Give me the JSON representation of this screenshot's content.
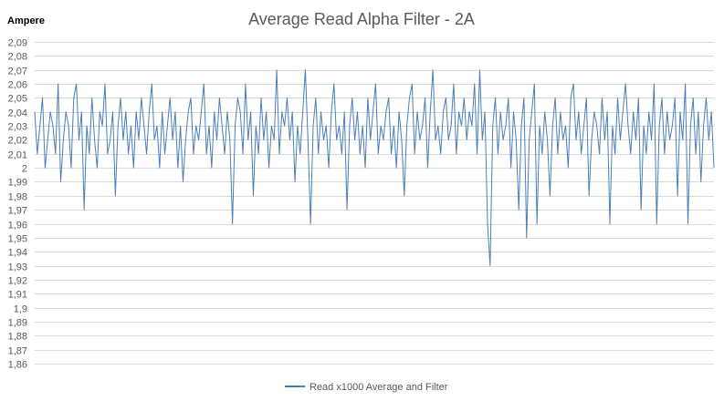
{
  "chart_data": {
    "type": "line",
    "title": "Average Read Alpha Filter - 2A",
    "ylabel": "Ampere",
    "xlabel": "",
    "ylim": [
      1.86,
      2.09
    ],
    "ytick_step": 0.01,
    "yticks": [
      "1,86",
      "1,87",
      "1,88",
      "1,89",
      "1,9",
      "1,91",
      "1,92",
      "1,93",
      "1,94",
      "1,95",
      "1,96",
      "1,97",
      "1,98",
      "1,99",
      "2",
      "2,01",
      "2,02",
      "2,03",
      "2,04",
      "2,05",
      "2,06",
      "2,07",
      "2,08",
      "2,09"
    ],
    "grid": true,
    "legend_position": "bottom",
    "series": [
      {
        "name": "Read x1000 Average and Filter",
        "color": "#4a7ebb",
        "values": [
          2.04,
          2.01,
          2.03,
          2.05,
          2.0,
          2.02,
          2.04,
          2.03,
          2.01,
          2.06,
          1.99,
          2.02,
          2.04,
          2.03,
          2.0,
          2.05,
          2.06,
          2.02,
          2.04,
          1.97,
          2.03,
          2.01,
          2.05,
          2.02,
          2.0,
          2.04,
          2.03,
          2.06,
          2.01,
          2.02,
          2.04,
          1.98,
          2.03,
          2.05,
          2.02,
          2.04,
          2.01,
          2.03,
          2.0,
          2.04,
          2.02,
          2.05,
          2.03,
          2.01,
          2.04,
          2.06,
          2.02,
          2.03,
          2.0,
          2.04,
          2.01,
          2.03,
          2.05,
          2.02,
          2.04,
          2.0,
          2.03,
          1.99,
          2.02,
          2.04,
          2.05,
          2.01,
          2.03,
          2.02,
          2.04,
          2.06,
          2.01,
          2.03,
          2.0,
          2.04,
          2.02,
          2.05,
          2.03,
          2.01,
          2.04,
          2.02,
          1.96,
          2.03,
          2.05,
          2.04,
          2.01,
          2.06,
          2.02,
          2.04,
          1.98,
          2.03,
          2.01,
          2.05,
          2.02,
          2.04,
          2.0,
          2.03,
          2.02,
          2.07,
          2.01,
          2.04,
          2.03,
          2.05,
          2.02,
          2.04,
          1.99,
          2.03,
          2.01,
          2.04,
          2.07,
          2.02,
          1.96,
          2.03,
          2.05,
          2.01,
          2.04,
          2.02,
          2.03,
          2.0,
          2.04,
          2.06,
          2.02,
          2.03,
          2.01,
          2.04,
          1.97,
          2.03,
          2.05,
          2.02,
          2.04,
          2.01,
          2.03,
          2.0,
          2.05,
          2.02,
          2.04,
          2.06,
          2.01,
          2.03,
          2.02,
          2.04,
          2.05,
          2.01,
          2.03,
          2.0,
          2.04,
          2.02,
          1.98,
          2.03,
          2.05,
          2.06,
          2.01,
          2.04,
          2.02,
          2.03,
          2.05,
          2.0,
          2.04,
          2.07,
          2.02,
          2.03,
          2.01,
          2.04,
          2.05,
          2.02,
          2.03,
          2.06,
          2.01,
          2.04,
          2.03,
          2.05,
          2.02,
          2.04,
          2.03,
          2.06,
          2.01,
          2.07,
          2.02,
          2.04,
          1.96,
          1.93,
          2.03,
          2.05,
          2.01,
          2.04,
          2.02,
          2.03,
          2.05,
          2.0,
          2.04,
          2.02,
          1.97,
          2.03,
          2.05,
          1.95,
          2.02,
          2.04,
          2.06,
          1.96,
          2.03,
          2.01,
          2.04,
          2.02,
          1.98,
          2.03,
          2.05,
          2.01,
          2.04,
          2.02,
          2.03,
          2.0,
          2.05,
          2.06,
          2.02,
          2.04,
          2.01,
          2.03,
          2.05,
          1.98,
          2.02,
          2.04,
          2.03,
          2.01,
          2.05,
          2.02,
          2.04,
          1.96,
          2.03,
          2.01,
          2.05,
          2.02,
          2.04,
          2.06,
          2.03,
          2.01,
          2.04,
          2.02,
          2.05,
          1.97,
          2.03,
          2.01,
          2.04,
          2.02,
          2.06,
          1.96,
          2.03,
          2.05,
          2.01,
          2.04,
          2.02,
          2.03,
          2.05,
          1.98,
          2.04,
          2.02,
          2.06,
          1.96,
          2.03,
          2.05,
          2.01,
          2.04,
          1.99,
          2.03,
          2.05,
          2.02,
          2.04,
          2.0
        ]
      }
    ]
  }
}
